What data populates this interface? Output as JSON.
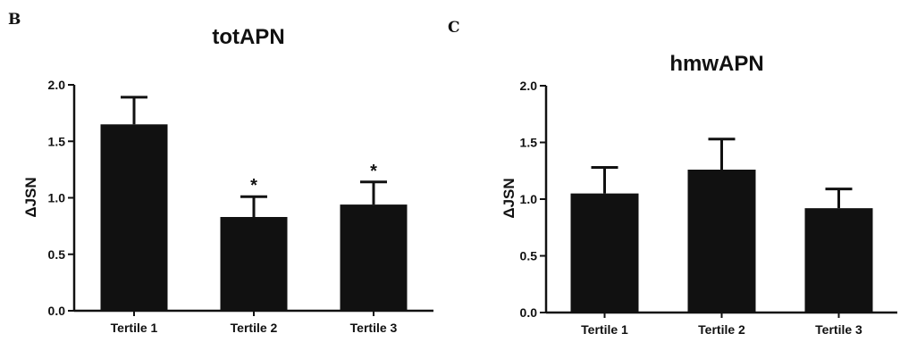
{
  "chart_data": [
    {
      "type": "bar",
      "panel_label": "B",
      "title": "totAPN",
      "ylabel": "ΔJSN",
      "xlabel": "",
      "categories": [
        "Tertile 1",
        "Tertile 2",
        "Tertile 3"
      ],
      "values": [
        1.65,
        0.83,
        0.94
      ],
      "errors": [
        0.24,
        0.18,
        0.2
      ],
      "annotations": [
        "",
        "*",
        "*"
      ],
      "ylim": [
        0,
        2.0
      ],
      "yticks": [
        "0.0",
        "0.5",
        "1.0",
        "1.5",
        "2.0"
      ],
      "grid": false,
      "bar_color": "#111111"
    },
    {
      "type": "bar",
      "panel_label": "C",
      "title": "hmwAPN",
      "ylabel": "ΔJSN",
      "xlabel": "",
      "categories": [
        "Tertile 1",
        "Tertile 2",
        "Tertile 3"
      ],
      "values": [
        1.05,
        1.26,
        0.92
      ],
      "errors": [
        0.23,
        0.27,
        0.17
      ],
      "annotations": [
        "",
        "",
        ""
      ],
      "ylim": [
        0,
        2.0
      ],
      "yticks": [
        "0.0",
        "0.5",
        "1.0",
        "1.5",
        "2.0"
      ],
      "grid": false,
      "bar_color": "#111111"
    }
  ]
}
